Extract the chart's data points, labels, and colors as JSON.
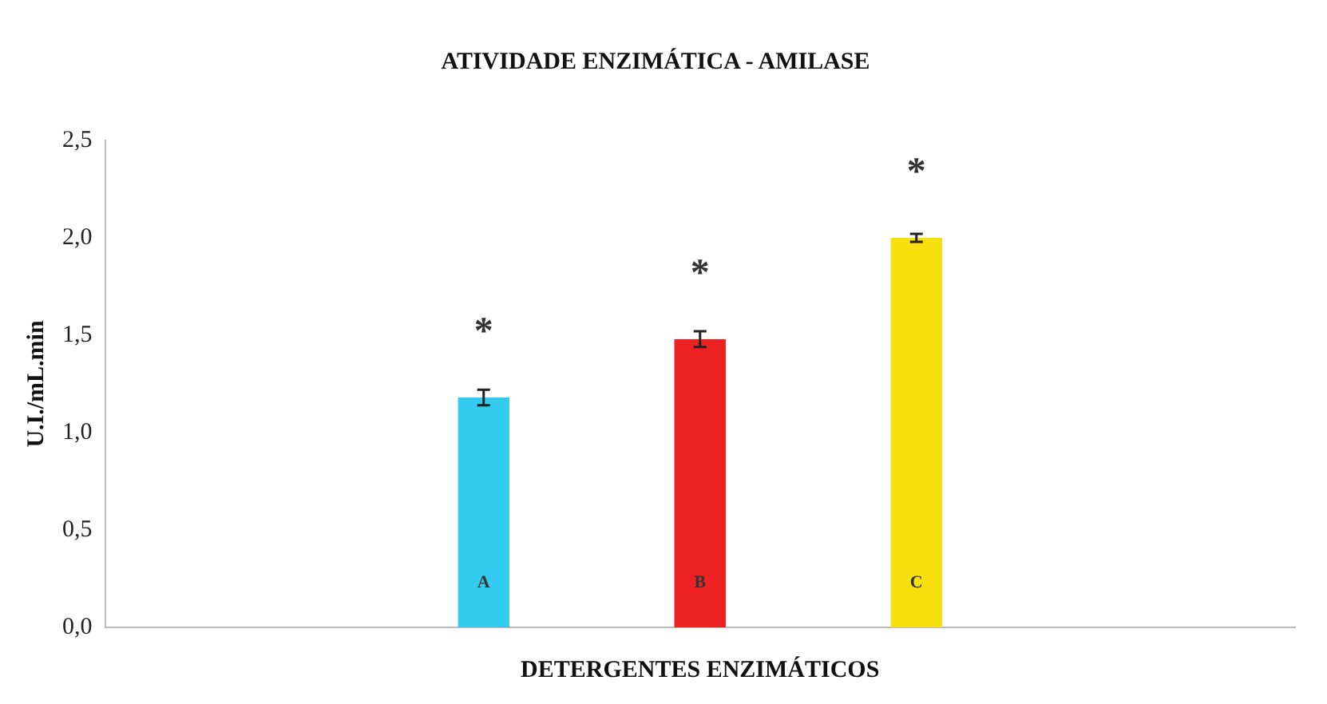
{
  "chart_data": {
    "type": "bar",
    "title": "ATIVIDADE ENZIMÁTICA - AMILASE",
    "xlabel": "DETERGENTES ENZIMÁTICOS",
    "ylabel": "U.I./mL.min",
    "categories": [
      "A",
      "B",
      "C"
    ],
    "values": [
      1.18,
      1.48,
      2.0
    ],
    "errors": [
      0.04,
      0.04,
      0.02
    ],
    "colors": [
      "#33ccf0",
      "#ee2222",
      "#f8e010"
    ],
    "ylim": [
      0,
      2.5
    ],
    "yticks": [
      {
        "value": 0,
        "label": "0,0"
      },
      {
        "value": 0.5,
        "label": "0,5"
      },
      {
        "value": 1,
        "label": "1,0"
      },
      {
        "value": 1.5,
        "label": "1,5"
      },
      {
        "value": 2,
        "label": "2,0"
      },
      {
        "value": 2.5,
        "label": "2,5"
      }
    ],
    "annotations": [
      "*",
      "*",
      "*"
    ],
    "grid": false,
    "legend": false
  }
}
